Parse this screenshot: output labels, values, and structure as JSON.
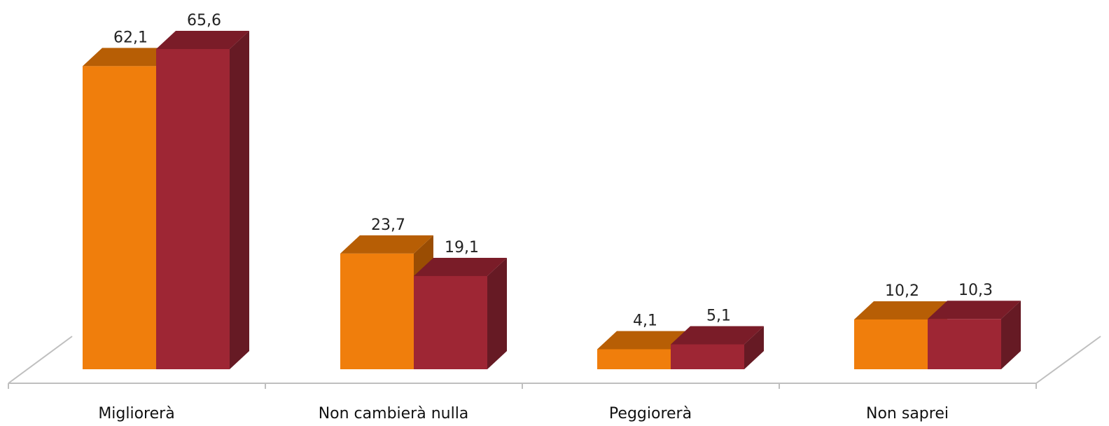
{
  "chart_data": {
    "type": "bar",
    "categories": [
      "Migliorerà",
      "Non cambierà nulla",
      "Peggiorerà",
      "Non saprei"
    ],
    "series": [
      {
        "values": [
          62.1,
          23.7,
          4.1,
          10.2
        ],
        "labels": [
          "62,1",
          "23,7",
          "4,1",
          "10,2"
        ],
        "color": "#F07E0C",
        "top_color": "#B75E05",
        "side_color": "#9A4D03"
      },
      {
        "values": [
          65.6,
          19.1,
          5.1,
          10.3
        ],
        "labels": [
          "65,6",
          "19,1",
          "5,1",
          "10,3"
        ],
        "color": "#9E2634",
        "top_color": "#7A1C28",
        "side_color": "#661A24"
      }
    ],
    "ylim": [
      0,
      65.6
    ],
    "grid": false,
    "legend": "none",
    "style": "3d-clustered-bar"
  }
}
